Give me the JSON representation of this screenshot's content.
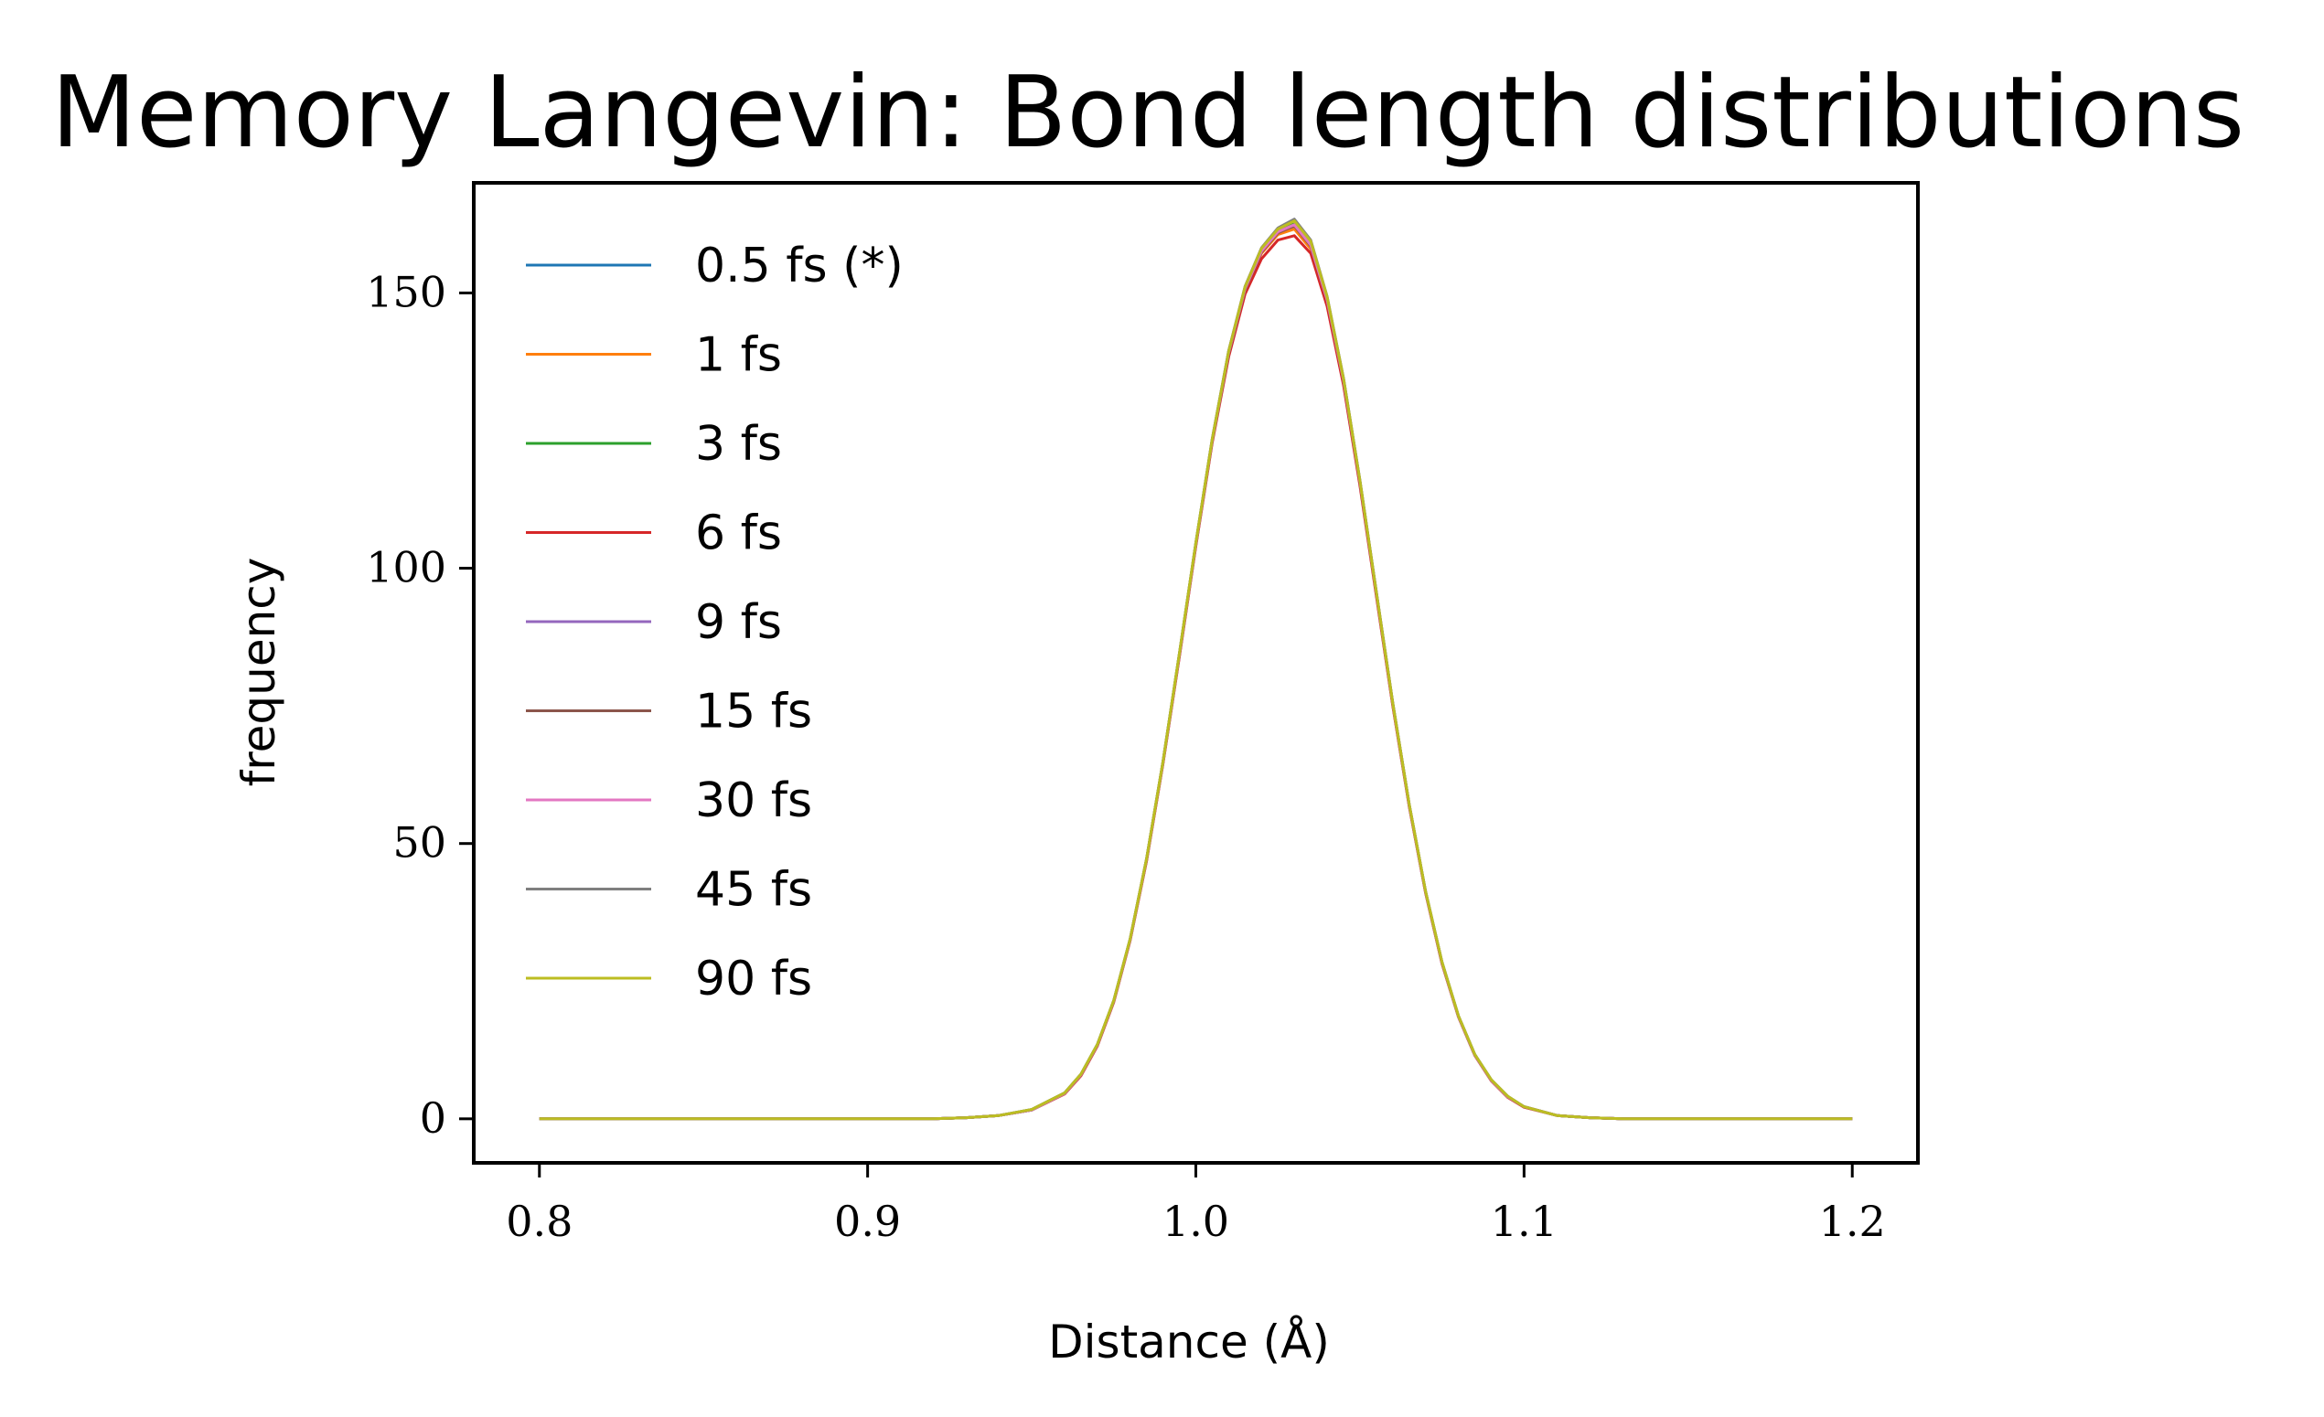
{
  "chart_data": {
    "type": "line",
    "title": "Memory Langevin: Bond length distributions",
    "xlabel": "Distance (Å)",
    "ylabel": "frequency",
    "xlim": [
      0.78,
      1.22
    ],
    "ylim": [
      -8,
      170
    ],
    "xticks": [
      0.8,
      0.9,
      1.0,
      1.1,
      1.2
    ],
    "xtick_labels": [
      "0.8",
      "0.9",
      "1.0",
      "1.1",
      "1.2"
    ],
    "yticks": [
      0,
      50,
      100,
      150
    ],
    "ytick_labels": [
      "0",
      "50",
      "100",
      "150"
    ],
    "grid": false,
    "legend_position": "top-left",
    "x": [
      0.8,
      0.84,
      0.88,
      0.9,
      0.92,
      0.93,
      0.94,
      0.95,
      0.96,
      0.965,
      0.97,
      0.975,
      0.98,
      0.985,
      0.99,
      0.995,
      1.0,
      1.005,
      1.01,
      1.015,
      1.02,
      1.025,
      1.03,
      1.035,
      1.04,
      1.045,
      1.05,
      1.055,
      1.06,
      1.065,
      1.07,
      1.075,
      1.08,
      1.085,
      1.09,
      1.095,
      1.1,
      1.11,
      1.12,
      1.13,
      1.15,
      1.2
    ],
    "series": [
      {
        "name": "0.5 fs (*)",
        "color": "#1f77b4",
        "values": [
          0,
          0,
          0,
          0,
          0,
          0.2,
          0.6,
          1.6,
          4.6,
          8.0,
          13.4,
          21.4,
          32.6,
          47.2,
          64.8,
          84.4,
          104.4,
          123.2,
          139.0,
          150.6,
          157.4,
          160.8,
          162.0,
          158.4,
          148.6,
          134.0,
          115.6,
          95.4,
          75.4,
          57.0,
          41.2,
          28.4,
          18.6,
          11.6,
          7.0,
          4.0,
          2.2,
          0.6,
          0.2,
          0,
          0,
          0
        ]
      },
      {
        "name": "1 fs",
        "color": "#ff7f0e",
        "values": [
          0,
          0,
          0,
          0,
          0,
          0.2,
          0.6,
          1.6,
          4.5,
          7.9,
          13.3,
          21.3,
          32.5,
          47.0,
          64.6,
          84.2,
          104.2,
          123.0,
          138.8,
          150.4,
          157.2,
          160.6,
          161.6,
          158.0,
          148.2,
          133.6,
          115.4,
          95.2,
          75.2,
          56.9,
          41.1,
          28.3,
          18.6,
          11.6,
          7.0,
          4.0,
          2.2,
          0.6,
          0.2,
          0,
          0,
          0
        ]
      },
      {
        "name": "3 fs",
        "color": "#2ca02c",
        "values": [
          0,
          0,
          0,
          0,
          0,
          0.2,
          0.6,
          1.7,
          4.7,
          8.1,
          13.5,
          21.5,
          32.7,
          47.3,
          64.9,
          84.6,
          104.6,
          123.4,
          139.4,
          151.0,
          158.0,
          161.4,
          162.8,
          159.2,
          149.2,
          134.4,
          115.9,
          95.6,
          75.5,
          57.1,
          41.3,
          28.5,
          18.7,
          11.7,
          7.1,
          4.1,
          2.2,
          0.6,
          0.2,
          0,
          0,
          0
        ]
      },
      {
        "name": "6 fs",
        "color": "#d62728",
        "values": [
          0,
          0,
          0,
          0,
          0,
          0.2,
          0.6,
          1.6,
          4.5,
          7.8,
          13.2,
          21.2,
          32.4,
          46.9,
          64.5,
          84.0,
          104.0,
          122.8,
          138.4,
          149.8,
          156.2,
          159.6,
          160.4,
          157.2,
          147.6,
          133.2,
          115.0,
          94.9,
          75.0,
          56.7,
          41.0,
          28.2,
          18.5,
          11.5,
          6.9,
          3.9,
          2.1,
          0.6,
          0.2,
          0,
          0,
          0
        ]
      },
      {
        "name": "9 fs",
        "color": "#9467bd",
        "values": [
          0,
          0,
          0,
          0,
          0,
          0.2,
          0.6,
          1.6,
          4.6,
          8.0,
          13.4,
          21.4,
          32.6,
          47.2,
          64.8,
          84.4,
          104.4,
          123.2,
          139.1,
          150.7,
          157.5,
          161.0,
          162.3,
          158.6,
          148.8,
          134.1,
          115.7,
          95.5,
          75.4,
          57.0,
          41.2,
          28.4,
          18.6,
          11.6,
          7.0,
          4.0,
          2.2,
          0.6,
          0.2,
          0,
          0,
          0
        ]
      },
      {
        "name": "15 fs",
        "color": "#8c564b",
        "values": [
          0,
          0,
          0,
          0,
          0,
          0.2,
          0.6,
          1.6,
          4.6,
          8.0,
          13.4,
          21.4,
          32.6,
          47.2,
          64.8,
          84.4,
          104.4,
          123.2,
          139.0,
          150.6,
          157.4,
          160.9,
          162.2,
          158.5,
          148.7,
          134.0,
          115.6,
          95.4,
          75.4,
          57.0,
          41.2,
          28.4,
          18.6,
          11.6,
          7.0,
          4.0,
          2.2,
          0.6,
          0.2,
          0,
          0,
          0
        ]
      },
      {
        "name": "30 fs",
        "color": "#e377c2",
        "values": [
          0,
          0,
          0,
          0,
          0,
          0.2,
          0.6,
          1.6,
          4.6,
          8.0,
          13.4,
          21.4,
          32.6,
          47.2,
          64.8,
          84.4,
          104.4,
          123.3,
          139.2,
          150.8,
          157.6,
          161.1,
          162.4,
          158.7,
          148.8,
          134.1,
          115.7,
          95.5,
          75.4,
          57.0,
          41.2,
          28.4,
          18.6,
          11.6,
          7.0,
          4.0,
          2.2,
          0.6,
          0.2,
          0,
          0,
          0
        ]
      },
      {
        "name": "45 fs",
        "color": "#7f7f7f",
        "values": [
          0,
          0,
          0,
          0,
          0,
          0.2,
          0.6,
          1.7,
          4.7,
          8.1,
          13.5,
          21.5,
          32.7,
          47.3,
          64.9,
          84.6,
          104.6,
          123.5,
          139.5,
          151.2,
          158.2,
          161.8,
          163.4,
          159.6,
          149.4,
          134.5,
          116.0,
          95.7,
          75.6,
          57.1,
          41.3,
          28.5,
          18.7,
          11.7,
          7.1,
          4.1,
          2.2,
          0.6,
          0.2,
          0,
          0,
          0
        ]
      },
      {
        "name": "90 fs",
        "color": "#bcbd22",
        "values": [
          0,
          0,
          0,
          0,
          0,
          0.2,
          0.6,
          1.7,
          4.7,
          8.1,
          13.5,
          21.5,
          32.7,
          47.3,
          64.9,
          84.6,
          104.6,
          123.4,
          139.4,
          151.1,
          158.1,
          161.6,
          163.1,
          159.4,
          149.3,
          134.4,
          115.9,
          95.6,
          75.5,
          57.1,
          41.3,
          28.5,
          18.7,
          11.7,
          7.1,
          4.1,
          2.2,
          0.6,
          0.2,
          0,
          0,
          0
        ]
      }
    ]
  }
}
